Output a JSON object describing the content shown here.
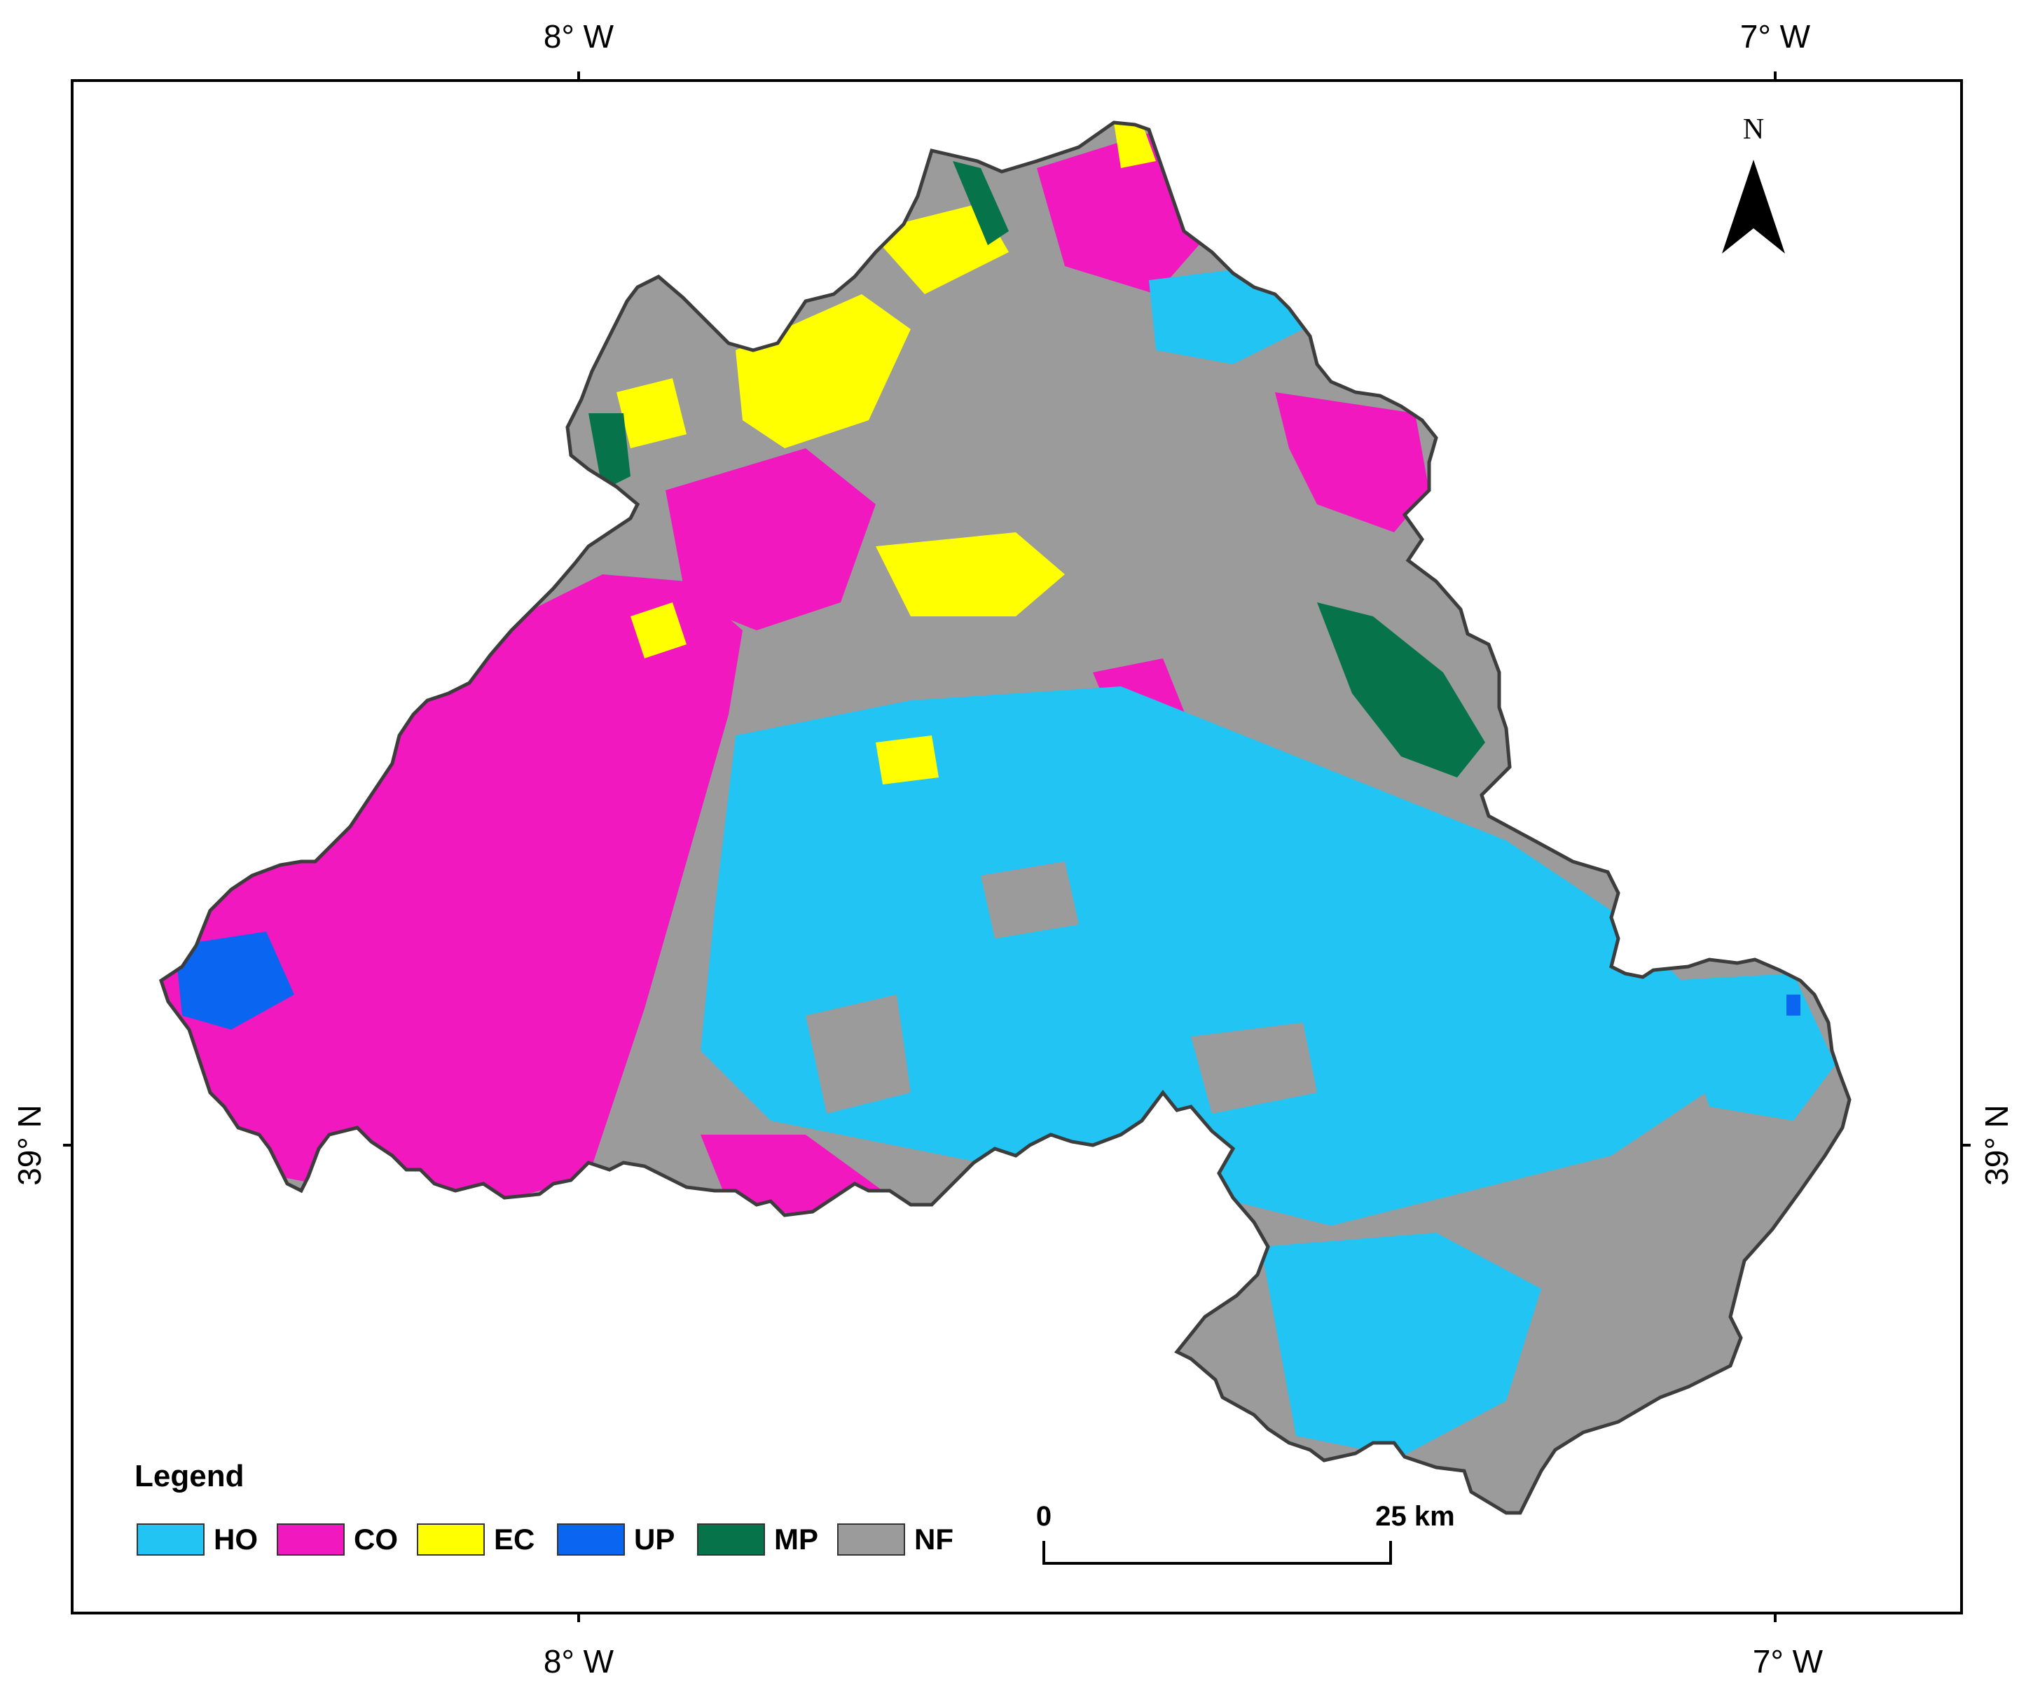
{
  "map": {
    "graticule": {
      "top_labels": [
        "8° W",
        "7° W"
      ],
      "bottom_labels": [
        "8° W",
        "7° W"
      ],
      "left_label": "39° N",
      "right_label": "39° N"
    },
    "north_arrow": {
      "label": "N"
    },
    "legend": {
      "title": "Legend",
      "items": [
        {
          "code": "HO",
          "color": "#21c4f3"
        },
        {
          "code": "CO",
          "color": "#f218c0"
        },
        {
          "code": "EC",
          "color": "#ffff00"
        },
        {
          "code": "UP",
          "color": "#0a66f0"
        },
        {
          "code": "MP",
          "color": "#06734a"
        },
        {
          "code": "NF",
          "color": "#9b9b9b"
        }
      ]
    },
    "scale_bar": {
      "start_label": "0",
      "end_label": "25 km"
    }
  }
}
